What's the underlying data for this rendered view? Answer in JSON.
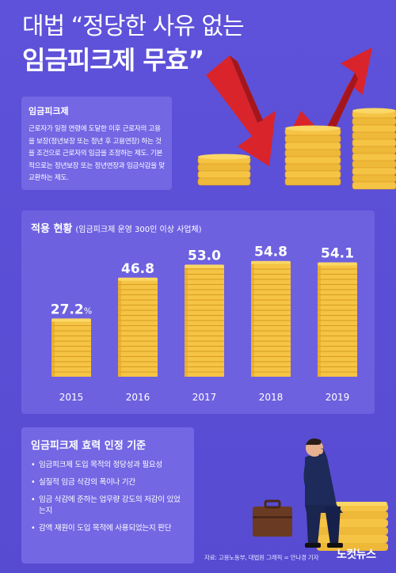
{
  "headline": {
    "line1": "대법 “정당한 사유 없는",
    "line2": "임금피크제 무효”"
  },
  "definition": {
    "title": "임금피크제",
    "body": "근로자가 일정 연령에 도달한 이후 근로자의 고용을 보장(정년보장 또는 정년 후 고용연장) 하는 것을 조건으로 근로자의 임금을 조정하는 제도. 기본적으로는 정년보장 또는 정년연장과 임금삭감을 맞교환하는 제도."
  },
  "chart": {
    "title": "적용 현황",
    "subtitle": "(임금피크제 운영 300인 이상 사업체)"
  },
  "chart_data": {
    "type": "bar",
    "categories": [
      "2015",
      "2016",
      "2017",
      "2018",
      "2019"
    ],
    "values": [
      27.2,
      46.8,
      53.0,
      54.8,
      54.1
    ],
    "value_labels": [
      "27.2",
      "46.8",
      "53.0",
      "54.8",
      "54.1"
    ],
    "unit": "%",
    "title": "적용 현황",
    "subtitle": "(임금피크제 운영 300인 이상 사업체)",
    "xlabel": "",
    "ylabel": "",
    "ylim": [
      0,
      60
    ],
    "grid": false,
    "bar_style": "stacked-coins",
    "colors": {
      "coin": "#f6c445",
      "coin_edge": "#e3a623",
      "coin_shadow": "#c98a17"
    }
  },
  "criteria": {
    "title": "임금피크제 효력 인정 기준",
    "items": [
      "임금피크제 도입 목적의 정당성과 필요성",
      "실질적 임금 삭감의 폭이나 기간",
      "임금 삭감에 준하는 업무량 강도의 저감이 있었는지",
      "감액 재원이 도입 목적에 사용되었는지 판단"
    ]
  },
  "footer": {
    "source": "자료: 고용노동부, 대법원    그래픽 = 안나경 기자",
    "logo": "노컷뉴스"
  },
  "colors": {
    "background": "#5b4fd6",
    "box": "#7367e3",
    "arrow_red": "#d9242b",
    "coin": "#f6c445"
  }
}
